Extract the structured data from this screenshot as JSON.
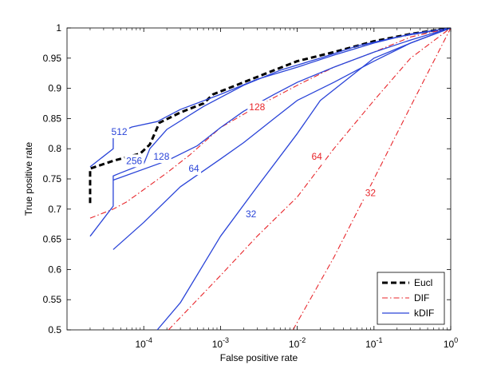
{
  "chart_data": {
    "type": "line",
    "title": "",
    "xlabel": "False positive rate",
    "ylabel": "True positive rate",
    "xscale": "log",
    "xlim": [
      1e-05,
      1
    ],
    "ylim": [
      0.5,
      1
    ],
    "grid": false,
    "legend_position": "bottom-right",
    "x_ticks": [
      {
        "base": "10",
        "exp": "-4",
        "value": 0.0001
      },
      {
        "base": "10",
        "exp": "-3",
        "value": 0.001
      },
      {
        "base": "10",
        "exp": "-2",
        "value": 0.01
      },
      {
        "base": "10",
        "exp": "-1",
        "value": 0.1
      },
      {
        "base": "10",
        "exp": "0",
        "value": 1
      }
    ],
    "y_ticks": [
      "0.5",
      "0.55",
      "0.6",
      "0.65",
      "0.7",
      "0.75",
      "0.8",
      "0.85",
      "0.9",
      "0.95",
      "1"
    ],
    "legend": [
      {
        "label": "Eucl",
        "color": "#000000",
        "style": "dashed"
      },
      {
        "label": "DIF",
        "color": "#e8262b",
        "style": "dashdot"
      },
      {
        "label": "kDIF",
        "color": "#2a44d8",
        "style": "solid"
      }
    ],
    "series": [
      {
        "name": "Eucl",
        "group": "Eucl",
        "color": "#000000",
        "style": "dashed",
        "points": [
          [
            2e-05,
            0.71
          ],
          [
            2e-05,
            0.767
          ],
          [
            4e-05,
            0.78
          ],
          [
            9e-05,
            0.792
          ],
          [
            0.00012,
            0.807
          ],
          [
            0.00016,
            0.843
          ],
          [
            0.0003,
            0.86
          ],
          [
            0.0006,
            0.875
          ],
          [
            0.0008,
            0.89
          ],
          [
            0.002,
            0.91
          ],
          [
            0.005,
            0.93
          ],
          [
            0.01,
            0.945
          ],
          [
            0.03,
            0.96
          ],
          [
            0.1,
            0.978
          ],
          [
            0.3,
            0.99
          ],
          [
            1,
            1
          ]
        ]
      },
      {
        "name": "DIF 128",
        "group": "DIF",
        "color": "#e8262b",
        "style": "dashdot",
        "label": "128",
        "label_at": [
          0.003,
          0.869
        ],
        "points": [
          [
            2e-05,
            0.685
          ],
          [
            4e-05,
            0.7
          ],
          [
            6e-05,
            0.712
          ],
          [
            0.0002,
            0.76
          ],
          [
            0.0004,
            0.79
          ],
          [
            0.001,
            0.835
          ],
          [
            0.003,
            0.87
          ],
          [
            0.01,
            0.905
          ],
          [
            0.03,
            0.935
          ],
          [
            0.1,
            0.96
          ],
          [
            0.3,
            0.985
          ],
          [
            1,
            1
          ]
        ]
      },
      {
        "name": "DIF 64",
        "group": "DIF",
        "color": "#e8262b",
        "style": "dashdot",
        "label": "64",
        "label_at": [
          0.018,
          0.787
        ],
        "points": [
          [
            0.00021,
            0.5
          ],
          [
            0.001,
            0.59
          ],
          [
            0.003,
            0.655
          ],
          [
            0.01,
            0.72
          ],
          [
            0.03,
            0.8
          ],
          [
            0.1,
            0.88
          ],
          [
            0.3,
            0.95
          ],
          [
            1,
            1
          ]
        ]
      },
      {
        "name": "DIF 32",
        "group": "DIF",
        "color": "#e8262b",
        "style": "dashdot",
        "label": "32",
        "label_at": [
          0.09,
          0.727
        ],
        "points": [
          [
            0.0088,
            0.5
          ],
          [
            0.03,
            0.62
          ],
          [
            0.1,
            0.75
          ],
          [
            0.3,
            0.87
          ],
          [
            1,
            1
          ]
        ]
      },
      {
        "name": "kDIF 512",
        "group": "kDIF",
        "color": "#2a44d8",
        "style": "solid",
        "label": "512",
        "label_at": [
          4.8e-05,
          0.828
        ],
        "points": [
          [
            2e-05,
            0.77
          ],
          [
            4e-05,
            0.8
          ],
          [
            4e-05,
            0.822
          ],
          [
            7e-05,
            0.836
          ],
          [
            0.00015,
            0.845
          ],
          [
            0.0003,
            0.865
          ],
          [
            0.001,
            0.89
          ],
          [
            0.003,
            0.915
          ],
          [
            0.01,
            0.935
          ],
          [
            0.03,
            0.955
          ],
          [
            0.1,
            0.975
          ],
          [
            0.3,
            0.99
          ],
          [
            1,
            1
          ]
        ]
      },
      {
        "name": "kDIF 256",
        "group": "kDIF",
        "color": "#2a44d8",
        "style": "solid",
        "label": "256",
        "label_at": [
          7.5e-05,
          0.78
        ],
        "points": [
          [
            2e-05,
            0.655
          ],
          [
            4e-05,
            0.705
          ],
          [
            4e-05,
            0.755
          ],
          [
            5e-05,
            0.76
          ],
          [
            0.0001,
            0.775
          ],
          [
            0.00012,
            0.8
          ],
          [
            0.0002,
            0.832
          ],
          [
            0.0006,
            0.87
          ],
          [
            0.002,
            0.905
          ],
          [
            0.006,
            0.93
          ],
          [
            0.02,
            0.95
          ],
          [
            0.06,
            0.97
          ],
          [
            0.2,
            0.985
          ],
          [
            1,
            1
          ]
        ]
      },
      {
        "name": "kDIF 128",
        "group": "kDIF",
        "color": "#2a44d8",
        "style": "solid",
        "label": "128",
        "label_at": [
          0.00017,
          0.787
        ],
        "points": [
          [
            4e-05,
            0.748
          ],
          [
            0.0002,
            0.78
          ],
          [
            0.0005,
            0.805
          ],
          [
            0.001,
            0.835
          ],
          [
            0.002,
            0.862
          ],
          [
            0.005,
            0.89
          ],
          [
            0.01,
            0.91
          ],
          [
            0.03,
            0.935
          ],
          [
            0.1,
            0.96
          ],
          [
            0.3,
            0.98
          ],
          [
            1,
            1
          ]
        ]
      },
      {
        "name": "kDIF 64",
        "group": "kDIF",
        "color": "#2a44d8",
        "style": "solid",
        "label": "64",
        "label_at": [
          0.00045,
          0.767
        ],
        "points": [
          [
            4e-05,
            0.633
          ],
          [
            0.0001,
            0.678
          ],
          [
            0.0003,
            0.737
          ],
          [
            0.001,
            0.783
          ],
          [
            0.002,
            0.81
          ],
          [
            0.005,
            0.85
          ],
          [
            0.01,
            0.88
          ],
          [
            0.03,
            0.91
          ],
          [
            0.1,
            0.945
          ],
          [
            0.3,
            0.975
          ],
          [
            1,
            1
          ]
        ]
      },
      {
        "name": "kDIF 32",
        "group": "kDIF",
        "color": "#2a44d8",
        "style": "solid",
        "label": "32",
        "label_at": [
          0.0025,
          0.692
        ],
        "points": [
          [
            0.00015,
            0.5
          ],
          [
            0.0003,
            0.545
          ],
          [
            0.001,
            0.655
          ],
          [
            0.003,
            0.737
          ],
          [
            0.01,
            0.825
          ],
          [
            0.02,
            0.88
          ],
          [
            0.05,
            0.92
          ],
          [
            0.1,
            0.95
          ],
          [
            0.3,
            0.975
          ],
          [
            1,
            1
          ]
        ]
      }
    ]
  }
}
